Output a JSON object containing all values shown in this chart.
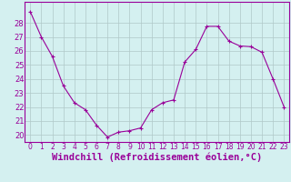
{
  "x": [
    0,
    1,
    2,
    3,
    4,
    5,
    6,
    7,
    8,
    9,
    10,
    11,
    12,
    13,
    14,
    15,
    16,
    17,
    18,
    19,
    20,
    21,
    22,
    23
  ],
  "y": [
    28.8,
    27.0,
    25.6,
    23.5,
    22.3,
    21.8,
    20.7,
    19.85,
    20.2,
    20.3,
    20.5,
    21.8,
    22.3,
    22.5,
    25.2,
    26.1,
    27.75,
    27.75,
    26.7,
    26.35,
    26.3,
    25.9,
    24.0,
    22.0
  ],
  "line_color": "#990099",
  "marker": "P",
  "marker_size": 2.5,
  "bg_color": "#d4f0f0",
  "grid_color": "#b0c8c8",
  "xlabel": "Windchill (Refroidissement éolien,°C)",
  "xlim": [
    -0.5,
    23.5
  ],
  "ylim": [
    19.5,
    29.5
  ],
  "yticks": [
    20,
    21,
    22,
    23,
    24,
    25,
    26,
    27,
    28
  ],
  "xticks": [
    0,
    1,
    2,
    3,
    4,
    5,
    6,
    7,
    8,
    9,
    10,
    11,
    12,
    13,
    14,
    15,
    16,
    17,
    18,
    19,
    20,
    21,
    22,
    23
  ],
  "tick_label_size": 5.5,
  "xlabel_size": 7.5,
  "label_color": "#990099",
  "spine_color": "#990099"
}
